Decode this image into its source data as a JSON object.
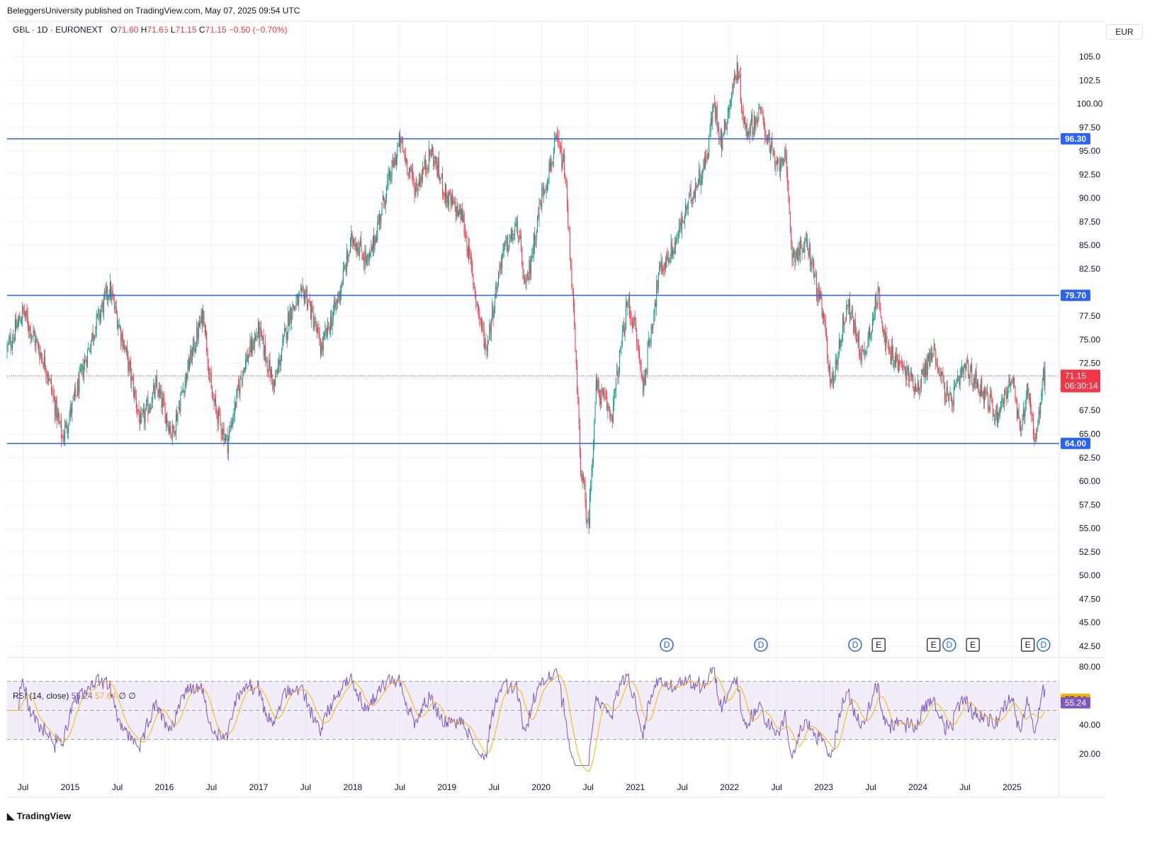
{
  "header": {
    "published": "BeleggersUniversity published on TradingView.com, May 07, 2025 09:54 UTC",
    "symbol": "GBL · 1D · EURONEXT",
    "o_label": "O",
    "o": "71.60",
    "h_label": "H",
    "h": "71.65",
    "l_label": "L",
    "l": "71.15",
    "c_label": "C",
    "c": "71.15",
    "change": "−0.50 (−0.70%)",
    "currency": "EUR"
  },
  "rsi_legend": {
    "label": "RSI (14, close)",
    "rsi": "55.24",
    "ma": "57.64",
    "extra1": "∅",
    "extra2": "∅"
  },
  "price_badge": {
    "price": "71.15",
    "countdown": "06:30:14"
  },
  "brand": "TradingView",
  "colors": {
    "up": "#089981",
    "down": "#f23645",
    "level": "#2962ff",
    "rsi": "#7e57c2",
    "rsi_ma": "#f5b700"
  },
  "chart_data": {
    "type": "candlestick",
    "x_labels": [
      "Jul",
      "2015",
      "Jul",
      "2016",
      "Jul",
      "2017",
      "Jul",
      "2018",
      "Jul",
      "2019",
      "Jul",
      "2020",
      "Jul",
      "2021",
      "Jul",
      "2022",
      "Jul",
      "2023",
      "Jul",
      "2024",
      "Jul",
      "2025"
    ],
    "y_ticks": [
      "105.0",
      "102.5",
      "100.00",
      "97.50",
      "95.00",
      "92.50",
      "90.00",
      "87.50",
      "85.00",
      "82.50",
      "77.50",
      "75.00",
      "72.50",
      "67.50",
      "65.00",
      "62.50",
      "60.00",
      "57.50",
      "55.00",
      "52.50",
      "50.00",
      "47.50",
      "45.00",
      "42.50"
    ],
    "ylim": [
      42.5,
      105.0
    ],
    "levels": [
      {
        "value": 96.3,
        "label": "96.30"
      },
      {
        "value": 79.7,
        "label": "79.70"
      },
      {
        "value": 64.0,
        "label": "64.00"
      }
    ],
    "last_price": 71.15,
    "close_path": [
      [
        "2014-05",
        74
      ],
      [
        "2014-07",
        78
      ],
      [
        "2014-10",
        72
      ],
      [
        "2014-12",
        64.5
      ],
      [
        "2015-02",
        70
      ],
      [
        "2015-04",
        76
      ],
      [
        "2015-06",
        80.5
      ],
      [
        "2015-08",
        74
      ],
      [
        "2015-10",
        66
      ],
      [
        "2015-12",
        70
      ],
      [
        "2016-02",
        65
      ],
      [
        "2016-04",
        72
      ],
      [
        "2016-06",
        78
      ],
      [
        "2016-07",
        69
      ],
      [
        "2016-09",
        64
      ],
      [
        "2016-11",
        72
      ],
      [
        "2017-01",
        76
      ],
      [
        "2017-03",
        70
      ],
      [
        "2017-05",
        78
      ],
      [
        "2017-07",
        80
      ],
      [
        "2017-09",
        74
      ],
      [
        "2017-11",
        79
      ],
      [
        "2018-01",
        86
      ],
      [
        "2018-03",
        83
      ],
      [
        "2018-05",
        90
      ],
      [
        "2018-07",
        96
      ],
      [
        "2018-09",
        91
      ],
      [
        "2018-11",
        95
      ],
      [
        "2019-01",
        90
      ],
      [
        "2019-03",
        88
      ],
      [
        "2019-05",
        78
      ],
      [
        "2019-06",
        74
      ],
      [
        "2019-08",
        84
      ],
      [
        "2019-10",
        87
      ],
      [
        "2019-11",
        80
      ],
      [
        "2020-01",
        90
      ],
      [
        "2020-03",
        96
      ],
      [
        "2020-04",
        93
      ],
      [
        "2020-05",
        80
      ],
      [
        "2020-06",
        62
      ],
      [
        "2020-07",
        55
      ],
      [
        "2020-08",
        70
      ],
      [
        "2020-10",
        67
      ],
      [
        "2020-12",
        79
      ],
      [
        "2021-01",
        76
      ],
      [
        "2021-02",
        70
      ],
      [
        "2021-04",
        82
      ],
      [
        "2021-06",
        85
      ],
      [
        "2021-08",
        90
      ],
      [
        "2021-10",
        94
      ],
      [
        "2021-11",
        100
      ],
      [
        "2021-12",
        96
      ],
      [
        "2022-02",
        104
      ],
      [
        "2022-03",
        97
      ],
      [
        "2022-05",
        99
      ],
      [
        "2022-07",
        93
      ],
      [
        "2022-08",
        95
      ],
      [
        "2022-09",
        84
      ],
      [
        "2022-11",
        85
      ],
      [
        "2023-01",
        77
      ],
      [
        "2023-02",
        70
      ],
      [
        "2023-04",
        79
      ],
      [
        "2023-06",
        73
      ],
      [
        "2023-08",
        80
      ],
      [
        "2023-09",
        74
      ],
      [
        "2023-11",
        72
      ],
      [
        "2024-01",
        70
      ],
      [
        "2024-03",
        74
      ],
      [
        "2024-05",
        68
      ],
      [
        "2024-07",
        72
      ],
      [
        "2024-09",
        70
      ],
      [
        "2024-11",
        67
      ],
      [
        "2025-01",
        71
      ],
      [
        "2025-02",
        65
      ],
      [
        "2025-03",
        70
      ],
      [
        "2025-04",
        64
      ],
      [
        "2025-05",
        71.15
      ]
    ],
    "rsi": {
      "label": "RSI (14, close)",
      "y_ticks": [
        "80.00",
        "40.00",
        "20.00"
      ],
      "ylim": [
        10,
        85
      ],
      "band": [
        30,
        70
      ],
      "mid": 50,
      "last_rsi": 55.24,
      "last_ma": 57.64
    },
    "events": [
      {
        "type": "D",
        "date": "2021-05"
      },
      {
        "type": "D",
        "date": "2022-05"
      },
      {
        "type": "D",
        "date": "2023-05"
      },
      {
        "type": "E",
        "date": "2023-08"
      },
      {
        "type": "E",
        "date": "2024-03"
      },
      {
        "type": "D",
        "date": "2024-05"
      },
      {
        "type": "E",
        "date": "2024-08"
      },
      {
        "type": "E",
        "date": "2025-03"
      },
      {
        "type": "D",
        "date": "2025-05"
      }
    ]
  }
}
